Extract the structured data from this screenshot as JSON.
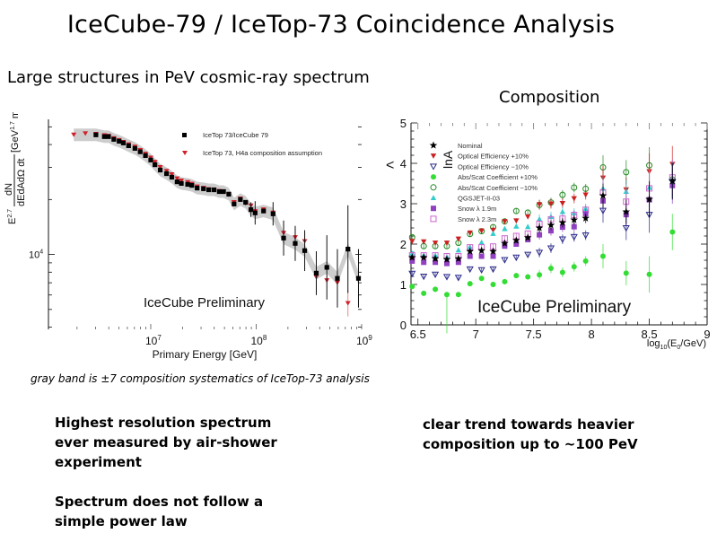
{
  "slide": {
    "title": "IceCube-79 / IceTop-73 Coincidence Analysis",
    "left_heading": "Large structures in PeV cosmic-ray spectrum",
    "right_heading": "Composition",
    "caption": "gray band is ±7 composition systematics of IceTop-73 analysis",
    "left_bullets": [
      "Highest resolution spectrum ever measured by air-shower experiment",
      "Spectrum does not follow a simple power law"
    ],
    "right_bullets": [
      "clear trend towards heavier composition up to ~100 PeV"
    ]
  },
  "chart_data": [
    {
      "type": "scatter",
      "title": "",
      "xlabel": "Primary Energy [GeV]",
      "ylabel": "E^2.7 dN/(dE dA dΩ dt) [GeV^1.7 m^-2 sr^-1 s^-1]",
      "xscale": "log",
      "yscale": "log",
      "xlim_log10": [
        6.03,
        9.0
      ],
      "ylim_log10": [
        3.59,
        4.74
      ],
      "x_tick_labels": [
        "10^7",
        "10^8",
        "10^9"
      ],
      "y_tick_labels": [
        "10^4"
      ],
      "annotation": "IceCube Preliminary",
      "legend_position": "top-right",
      "band": {
        "name": "composition systematics",
        "color": "#c8c8c8"
      },
      "series": [
        {
          "name": "IceTop 73/IceCube 79",
          "marker": "square",
          "color": "#000000",
          "log10E": [
            6.48,
            6.56,
            6.6,
            6.65,
            6.7,
            6.74,
            6.79,
            6.85,
            6.9,
            6.95,
            7.0,
            7.04,
            7.09,
            7.15,
            7.2,
            7.25,
            7.29,
            7.35,
            7.39,
            7.44,
            7.5,
            7.55,
            7.6,
            7.65,
            7.69,
            7.74,
            7.79,
            7.85,
            7.9,
            7.95,
            7.99,
            8.07,
            8.16,
            8.26,
            8.37,
            8.46,
            8.57,
            8.67,
            8.77,
            8.87,
            8.97
          ],
          "values": [
            45200,
            44200,
            44200,
            42700,
            41700,
            40800,
            39400,
            38100,
            36500,
            34800,
            32900,
            31000,
            29000,
            27700,
            26500,
            25000,
            24500,
            24200,
            23900,
            23100,
            22900,
            22600,
            22600,
            22100,
            22100,
            21400,
            18900,
            20000,
            19300,
            17600,
            16900,
            17300,
            16700,
            12300,
            11500,
            10500,
            7900,
            8500,
            7400,
            10700,
            7400
          ],
          "errors": [
            0,
            0,
            0,
            0,
            0,
            0,
            0,
            0,
            0,
            0,
            0,
            0,
            0,
            0,
            0,
            0,
            0,
            0,
            0,
            0,
            0,
            0,
            0,
            0,
            0,
            0,
            0,
            0,
            0,
            0.5,
            0.8,
            0,
            0.8,
            1.2,
            1.2,
            1.4,
            1.5,
            2.2,
            2.0,
            3.0,
            2.0
          ]
        },
        {
          "name": "IceTop 73, H4a composition assumption",
          "marker": "triangle-down",
          "color": "#d0202a",
          "log10E": [
            6.27,
            6.38,
            6.48,
            6.56,
            6.6,
            6.65,
            6.7,
            6.74,
            6.79,
            6.85,
            6.9,
            6.95,
            7.0,
            7.04,
            7.09,
            7.15,
            7.2,
            7.25,
            7.29,
            7.35,
            7.39,
            7.44,
            7.5,
            7.55,
            7.6,
            7.65,
            7.69,
            7.74,
            7.79,
            7.85,
            7.9,
            7.95,
            7.99,
            8.07,
            8.16,
            8.26,
            8.37,
            8.46,
            8.57,
            8.67,
            8.77,
            8.87,
            8.97
          ],
          "values": [
            45200,
            45900,
            45600,
            44800,
            44500,
            43200,
            42200,
            41200,
            40000,
            38800,
            37200,
            35500,
            33800,
            32000,
            30000,
            28600,
            27400,
            26000,
            25300,
            24800,
            24300,
            23500,
            23100,
            22700,
            22500,
            22200,
            22000,
            21200,
            19300,
            20200,
            19000,
            18500,
            17200,
            17600,
            16900,
            13100,
            12400,
            11800,
            7500,
            7200,
            7000,
            5400,
            7300
          ],
          "errors": [
            0,
            0,
            0,
            0,
            0,
            0,
            0,
            0,
            0,
            0,
            0,
            0,
            0,
            0,
            0,
            0,
            0,
            0,
            0,
            0,
            0,
            0,
            0,
            0,
            0,
            0,
            0,
            0,
            0,
            0,
            0,
            0,
            0,
            0,
            0,
            0.6,
            0.6,
            0.6,
            0,
            0,
            0,
            0.9,
            0
          ]
        }
      ]
    },
    {
      "type": "scatter",
      "title": "",
      "xlabel": "log10(E0/GeV)",
      "ylabel": "<lnA>",
      "xlim": [
        6.44,
        9.0
      ],
      "ylim": [
        0,
        5
      ],
      "x_ticks": [
        6.5,
        7,
        7.5,
        8,
        8.5,
        9
      ],
      "x_tick_labels": [
        "6.5",
        "7",
        "7.5",
        "8",
        "8.5",
        "9"
      ],
      "y_ticks": [
        0,
        1,
        2,
        3,
        4,
        5
      ],
      "y_tick_labels": [
        "0",
        "1",
        "2",
        "3",
        "4",
        "5"
      ],
      "annotation": "IceCube Preliminary",
      "legend_position": "top-left",
      "x": [
        6.45,
        6.55,
        6.65,
        6.75,
        6.85,
        6.95,
        7.05,
        7.15,
        7.25,
        7.35,
        7.45,
        7.55,
        7.65,
        7.75,
        7.85,
        7.95,
        8.1,
        8.3,
        8.5,
        8.7
      ],
      "series": [
        {
          "name": "Nominal",
          "marker": "star",
          "color": "#000000",
          "values": [
            1.67,
            1.67,
            1.64,
            1.62,
            1.64,
            1.82,
            1.84,
            1.82,
            2.02,
            2.09,
            2.16,
            2.4,
            2.47,
            2.53,
            2.6,
            2.64,
            3.2,
            2.8,
            3.11,
            3.56
          ]
        },
        {
          "name": "Optical Efficiency +10%",
          "marker": "triangle-down-filled",
          "color": "#cc2020",
          "values": [
            2.07,
            2.06,
            2.03,
            2.03,
            2.13,
            2.28,
            2.33,
            2.35,
            2.56,
            2.58,
            2.68,
            2.98,
            3.0,
            3.01,
            3.13,
            3.22,
            3.64,
            3.35,
            3.8,
            3.98
          ]
        },
        {
          "name": "Optical Efficiency −10%",
          "marker": "triangle-down-open",
          "color": "#2a2a8a",
          "values": [
            1.27,
            1.2,
            1.25,
            1.19,
            1.17,
            1.38,
            1.36,
            1.38,
            1.61,
            1.67,
            1.74,
            1.79,
            1.9,
            2.12,
            2.18,
            2.22,
            2.83,
            2.4,
            2.73,
            3.55
          ]
        },
        {
          "name": "Abs/Scat Coefficient +10%",
          "marker": "circle-filled",
          "color": "#33dd33",
          "values": [
            0.95,
            0.78,
            0.88,
            0.75,
            0.75,
            1.02,
            1.15,
            1.0,
            1.07,
            1.22,
            1.19,
            1.24,
            1.4,
            1.3,
            1.44,
            1.58,
            1.7,
            1.28,
            1.25,
            2.3
          ]
        },
        {
          "name": "Abs/Scat Coefficient −10%",
          "marker": "circle-open",
          "color": "#228822",
          "values": [
            2.17,
            1.95,
            1.95,
            1.95,
            2.03,
            2.25,
            2.32,
            2.42,
            2.56,
            2.82,
            2.78,
            2.97,
            3.03,
            3.22,
            3.4,
            3.37,
            3.9,
            3.78,
            3.95,
            3.6
          ]
        },
        {
          "name": "QGSJET-II-03",
          "marker": "triangle-up-filled",
          "color": "#33cccc",
          "values": [
            1.77,
            1.72,
            1.72,
            1.68,
            1.85,
            1.93,
            2.04,
            2.26,
            2.38,
            2.44,
            2.43,
            2.62,
            2.68,
            2.8,
            2.77,
            2.88,
            3.38,
            3.3,
            3.4,
            3.6
          ]
        },
        {
          "name": "Snow λ 1.9m",
          "marker": "square-filled",
          "color": "#9040c0",
          "values": [
            1.58,
            1.55,
            1.55,
            1.52,
            1.55,
            1.7,
            1.7,
            1.7,
            1.95,
            2.0,
            2.11,
            2.23,
            2.33,
            2.42,
            2.43,
            2.75,
            3.07,
            2.73,
            3.1,
            3.45
          ]
        },
        {
          "name": "Snow λ 2.3m",
          "marker": "square-open",
          "color": "#cc66cc",
          "values": [
            1.72,
            1.72,
            1.72,
            1.7,
            1.7,
            1.92,
            1.92,
            1.94,
            2.14,
            2.2,
            2.26,
            2.5,
            2.61,
            2.63,
            2.72,
            2.85,
            3.28,
            3.05,
            3.38,
            3.65
          ]
        }
      ]
    }
  ]
}
